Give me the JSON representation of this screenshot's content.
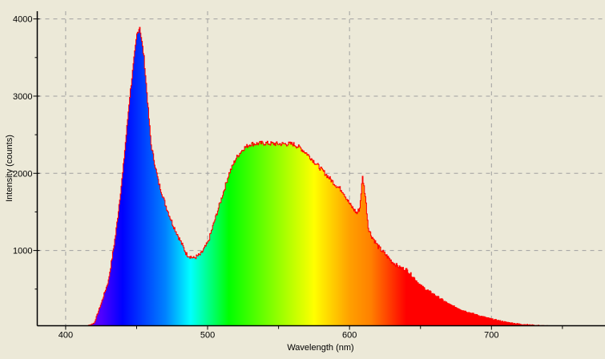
{
  "chart_data": {
    "type": "area",
    "title": "",
    "xlabel": "Wavelength (nm)",
    "ylabel": "Intensity (counts)",
    "xlim": [
      380,
      780
    ],
    "ylim": [
      25,
      4100
    ],
    "x_ticks": [
      400,
      500,
      600,
      700
    ],
    "x_tick_labels": [
      "400",
      "500",
      "600",
      "700"
    ],
    "y_ticks": [
      1000,
      2000,
      3000,
      4000
    ],
    "y_tick_labels": [
      "1000",
      "2000",
      "3000",
      "4000"
    ],
    "grid": true,
    "legend": "none",
    "fill": "visible-spectrum gradient by wavelength",
    "outline_color": "#ff0000",
    "background_color": "#ece9d8",
    "x": [
      410,
      415,
      420,
      425,
      430,
      435,
      440,
      445,
      450,
      452,
      455,
      460,
      465,
      470,
      475,
      480,
      485,
      490,
      495,
      500,
      505,
      510,
      515,
      520,
      525,
      530,
      540,
      550,
      560,
      565,
      570,
      575,
      580,
      585,
      590,
      595,
      600,
      605,
      607,
      609,
      611,
      613,
      615,
      620,
      625,
      630,
      635,
      640,
      645,
      650,
      660,
      670,
      680,
      690,
      700,
      710,
      720,
      730,
      740,
      750,
      760,
      765
    ],
    "y": [
      0,
      20,
      60,
      320,
      610,
      1200,
      2000,
      3000,
      3800,
      3900,
      3500,
      2370,
      1900,
      1600,
      1350,
      1150,
      950,
      900,
      950,
      1100,
      1400,
      1700,
      2000,
      2200,
      2320,
      2380,
      2390,
      2380,
      2380,
      2330,
      2250,
      2150,
      2050,
      1950,
      1850,
      1770,
      1600,
      1480,
      1550,
      1950,
      1700,
      1300,
      1200,
      1050,
      950,
      850,
      780,
      750,
      650,
      540,
      420,
      300,
      220,
      160,
      110,
      70,
      45,
      30,
      20,
      10,
      5,
      0
    ]
  }
}
